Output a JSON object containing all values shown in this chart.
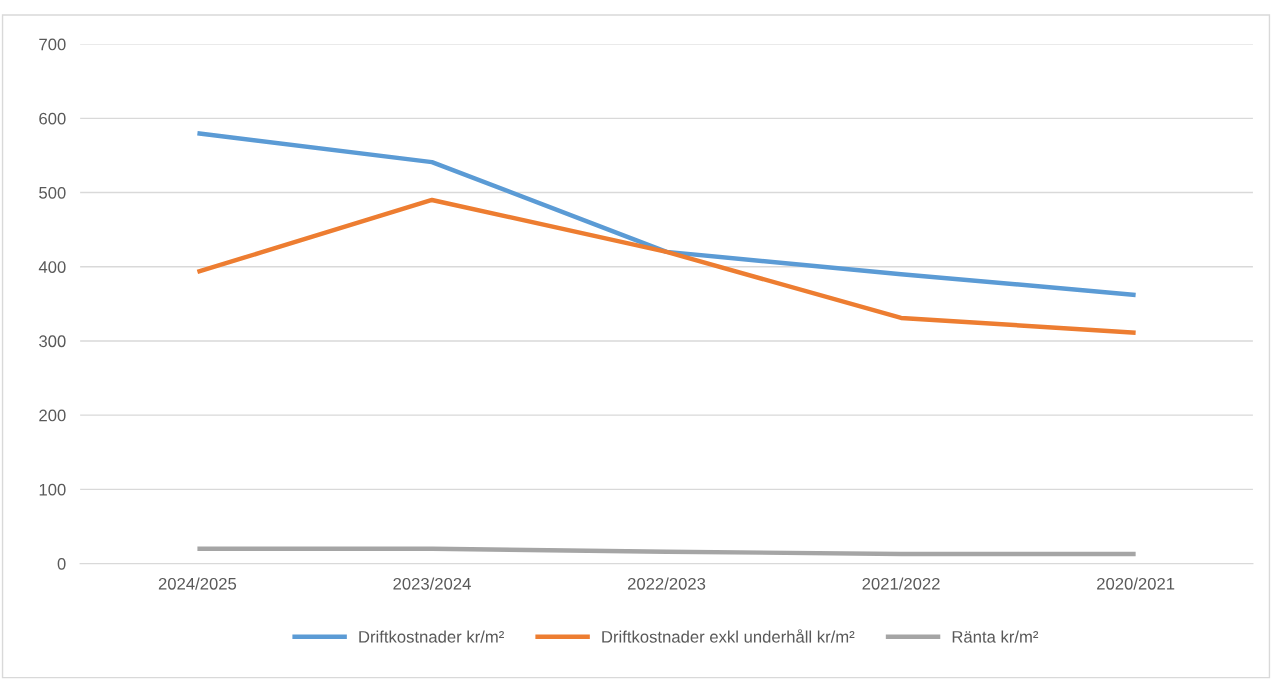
{
  "chart_data": {
    "type": "line",
    "categories": [
      "2024/2025",
      "2023/2024",
      "2022/2023",
      "2021/2022",
      "2020/2021"
    ],
    "series": [
      {
        "name": "Driftkostnader kr/m²",
        "color": "#5b9bd5",
        "values": [
          580,
          541,
          420,
          390,
          362
        ]
      },
      {
        "name": "Driftkostnader exkl underhåll kr/m²",
        "color": "#ed7d31",
        "values": [
          393,
          490,
          420,
          331,
          311
        ]
      },
      {
        "name": "Ränta kr/m²",
        "color": "#a5a5a5",
        "values": [
          20,
          20,
          16,
          13,
          13
        ]
      }
    ],
    "ylim": [
      0,
      700
    ],
    "yticks": [
      0,
      100,
      200,
      300,
      400,
      500,
      600,
      700
    ],
    "grid": "y",
    "legend": "bottom",
    "marker": "none",
    "line_style": "solid"
  }
}
